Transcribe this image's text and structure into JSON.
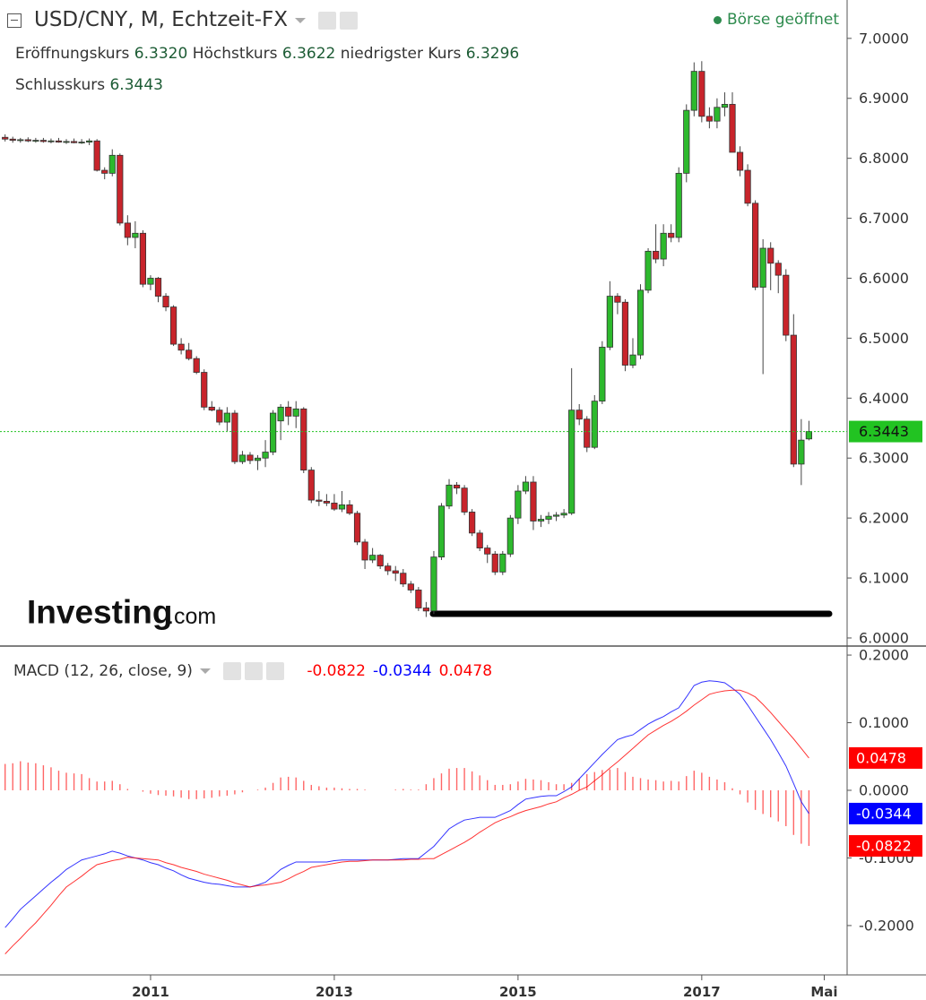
{
  "chart_data": [
    {
      "type": "candlestick",
      "title": "USD/CNY, M, Echtzeit-FX",
      "status": "Börse geöffnet",
      "ohlc_names": [
        "Eröffnungskurs",
        "Höchstkurs",
        "niedrigster Kurs",
        "Schlusskurs"
      ],
      "ohlc_value_labels": [
        "6.3320",
        "6.3622",
        "6.3296",
        "6.3443"
      ],
      "watermark": [
        "Investing",
        ".com"
      ],
      "up_color": "#2db92d",
      "down_color": "#c8242b",
      "last_color": "#22c322",
      "ylim": [
        5.988,
        7.064
      ],
      "yticks": [
        {
          "value": 6,
          "label": "6.0000"
        },
        {
          "value": 6.1,
          "label": "6.1000"
        },
        {
          "value": 6.2,
          "label": "6.2000"
        },
        {
          "value": 6.3,
          "label": "6.3000"
        },
        {
          "value": 6.4,
          "label": "6.4000"
        },
        {
          "value": 6.5,
          "label": "6.5000"
        },
        {
          "value": 6.6,
          "label": "6.6000"
        },
        {
          "value": 6.7,
          "label": "6.7000"
        },
        {
          "value": 6.8,
          "label": "6.8000"
        },
        {
          "value": 6.9,
          "label": "6.9000"
        },
        {
          "value": 7,
          "label": "7.0000"
        }
      ],
      "grid": false,
      "categories": [
        null,
        null,
        null,
        null,
        null,
        null,
        null,
        null,
        null,
        null,
        null,
        null,
        null,
        null,
        null,
        null,
        null,
        null,
        null,
        "2011",
        null,
        null,
        null,
        null,
        null,
        null,
        null,
        null,
        null,
        null,
        null,
        null,
        null,
        null,
        null,
        null,
        null,
        null,
        null,
        null,
        null,
        null,
        null,
        "2013",
        null,
        null,
        null,
        null,
        null,
        null,
        null,
        null,
        null,
        null,
        null,
        null,
        null,
        null,
        null,
        null,
        null,
        null,
        null,
        null,
        null,
        null,
        null,
        "2015",
        null,
        null,
        null,
        null,
        null,
        null,
        null,
        null,
        null,
        null,
        null,
        null,
        null,
        null,
        null,
        null,
        null,
        null,
        null,
        null,
        null,
        null,
        null,
        "2017",
        null,
        null,
        null,
        null,
        null,
        null,
        null,
        null,
        null,
        null,
        null,
        null,
        null,
        null,
        null,
        "Mai"
      ],
      "open": [
        6.835,
        6.832,
        6.83,
        6.831,
        6.829,
        6.83,
        6.828,
        6.829,
        6.827,
        6.828,
        6.826,
        6.827,
        6.829,
        6.78,
        6.775,
        6.805,
        6.692,
        6.668,
        6.675,
        6.59,
        6.6,
        6.57,
        6.552,
        6.49,
        6.48,
        6.466,
        6.443,
        6.385,
        6.38,
        6.36,
        6.375,
        6.294,
        6.305,
        6.296,
        6.3,
        6.31,
        6.362,
        6.385,
        6.37,
        6.382,
        6.28,
        6.23,
        6.228,
        6.225,
        6.215,
        6.222,
        6.208,
        6.16,
        6.13,
        6.138,
        6.12,
        6.112,
        6.108,
        6.09,
        6.08,
        6.05,
        6.045,
        6.135,
        6.22,
        6.255,
        6.25,
        6.21,
        6.175,
        6.15,
        6.14,
        6.11,
        6.14,
        6.2,
        6.245,
        6.26,
        6.195,
        6.198,
        6.203,
        6.205,
        6.208,
        6.38,
        6.365,
        6.318,
        6.395,
        6.485,
        6.57,
        6.56,
        6.455,
        6.472,
        6.58,
        6.645,
        6.632,
        6.675,
        6.668,
        6.775,
        6.88,
        6.945,
        6.87,
        6.862,
        6.885,
        6.89,
        6.81,
        6.78,
        6.725,
        6.585,
        6.65,
        6.625,
        6.605,
        6.505,
        6.29,
        6.332,
        null,
        null
      ],
      "high": [
        6.84,
        6.836,
        6.834,
        6.835,
        6.834,
        6.834,
        6.833,
        6.834,
        6.832,
        6.833,
        6.832,
        6.833,
        6.832,
        6.785,
        6.815,
        6.808,
        6.705,
        6.695,
        6.68,
        6.605,
        6.602,
        6.575,
        6.555,
        6.5,
        6.492,
        6.47,
        6.448,
        6.395,
        6.385,
        6.385,
        6.38,
        6.312,
        6.31,
        6.305,
        6.33,
        6.38,
        6.39,
        6.395,
        6.395,
        6.385,
        6.285,
        6.245,
        6.24,
        6.24,
        6.245,
        6.23,
        6.212,
        6.165,
        6.15,
        6.14,
        6.125,
        6.12,
        6.115,
        6.095,
        6.085,
        6.06,
        6.145,
        6.225,
        6.265,
        6.26,
        6.255,
        6.215,
        6.18,
        6.155,
        6.145,
        6.145,
        6.205,
        6.255,
        6.27,
        6.27,
        6.205,
        6.21,
        6.21,
        6.215,
        6.45,
        6.39,
        6.37,
        6.405,
        6.495,
        6.595,
        6.575,
        6.565,
        6.5,
        6.59,
        6.65,
        6.69,
        6.69,
        6.69,
        6.785,
        6.89,
        6.96,
        6.962,
        6.885,
        6.9,
        6.91,
        6.91,
        6.82,
        6.79,
        6.73,
        6.665,
        6.66,
        6.63,
        6.615,
        6.54,
        6.365,
        6.3622,
        null,
        null
      ],
      "low": [
        6.828,
        6.826,
        6.826,
        6.827,
        6.826,
        6.826,
        6.825,
        6.826,
        6.824,
        6.825,
        6.824,
        6.822,
        6.778,
        6.765,
        6.77,
        6.688,
        6.655,
        6.65,
        6.585,
        6.58,
        6.56,
        6.545,
        6.487,
        6.473,
        6.463,
        6.44,
        6.38,
        6.378,
        6.355,
        6.345,
        6.29,
        6.29,
        6.29,
        6.28,
        6.285,
        6.305,
        6.33,
        6.355,
        6.35,
        6.275,
        6.225,
        6.22,
        6.22,
        6.212,
        6.21,
        6.205,
        6.155,
        6.115,
        6.125,
        6.115,
        6.105,
        6.095,
        6.085,
        6.075,
        6.045,
        6.035,
        6.04,
        6.13,
        6.215,
        6.24,
        6.205,
        6.17,
        6.145,
        6.125,
        6.105,
        6.105,
        6.135,
        6.19,
        6.24,
        6.18,
        6.185,
        6.19,
        6.195,
        6.2,
        6.205,
        6.355,
        6.31,
        6.315,
        6.39,
        6.48,
        6.54,
        6.445,
        6.45,
        6.465,
        6.575,
        6.625,
        6.62,
        6.66,
        6.66,
        6.76,
        6.87,
        6.86,
        6.85,
        6.85,
        6.87,
        6.81,
        6.77,
        6.72,
        6.58,
        6.44,
        6.58,
        6.575,
        6.495,
        6.285,
        6.255,
        6.3296,
        null,
        null
      ],
      "close": [
        6.832,
        6.83,
        6.831,
        6.829,
        6.83,
        6.828,
        6.829,
        6.827,
        6.828,
        6.826,
        6.827,
        6.829,
        6.78,
        6.775,
        6.805,
        6.692,
        6.668,
        6.675,
        6.59,
        6.6,
        6.57,
        6.552,
        6.49,
        6.48,
        6.466,
        6.443,
        6.385,
        6.38,
        6.36,
        6.375,
        6.294,
        6.305,
        6.296,
        6.3,
        6.31,
        6.375,
        6.385,
        6.37,
        6.382,
        6.28,
        6.23,
        6.228,
        6.225,
        6.215,
        6.222,
        6.208,
        6.16,
        6.13,
        6.138,
        6.12,
        6.112,
        6.108,
        6.09,
        6.08,
        6.05,
        6.045,
        6.135,
        6.22,
        6.255,
        6.25,
        6.21,
        6.175,
        6.15,
        6.14,
        6.11,
        6.14,
        6.2,
        6.245,
        6.26,
        6.195,
        6.198,
        6.203,
        6.205,
        6.208,
        6.38,
        6.365,
        6.318,
        6.395,
        6.485,
        6.57,
        6.56,
        6.455,
        6.472,
        6.58,
        6.645,
        6.632,
        6.675,
        6.668,
        6.775,
        6.88,
        6.945,
        6.87,
        6.862,
        6.885,
        6.89,
        6.81,
        6.78,
        6.725,
        6.585,
        6.65,
        6.625,
        6.605,
        6.505,
        6.29,
        6.33,
        6.3443,
        null,
        null
      ]
    },
    {
      "type": "line",
      "title": "MACD (12, 26, close, 9)",
      "ylim": [
        -0.273,
        0.212
      ],
      "yticks": [
        {
          "value": -0.2,
          "label": "-0.2000"
        },
        {
          "value": -0.1,
          "label": "-0.1000"
        },
        {
          "value": 0,
          "label": "0.0000"
        },
        {
          "value": 0.1,
          "label": "0.1000"
        },
        {
          "value": 0.2,
          "label": "0.2000"
        }
      ],
      "grid": false,
      "series": [
        {
          "style": "histogram",
          "color": "#ff0000",
          "values": [
            0.039,
            0.04,
            0.043,
            0.041,
            0.04,
            0.037,
            0.034,
            0.029,
            0.026,
            0.025,
            0.024,
            0.018,
            0.013,
            0.013,
            0.014,
            0.009,
            0.002,
            0.0,
            -0.002,
            -0.005,
            -0.007,
            -0.008,
            -0.009,
            -0.011,
            -0.013,
            -0.013,
            -0.012,
            -0.011,
            -0.009,
            -0.008,
            -0.006,
            -0.003,
            0.0,
            0.001,
            0.004,
            0.011,
            0.019,
            0.02,
            0.019,
            0.014,
            0.008,
            0.006,
            0.004,
            0.004,
            0.003,
            0.002,
            0.002,
            0.001,
            0.0,
            0.0,
            0.0,
            0.001,
            0.002,
            0.001,
            0.001,
            0.009,
            0.018,
            0.025,
            0.032,
            0.033,
            0.033,
            0.028,
            0.022,
            0.015,
            0.008,
            0.008,
            0.009,
            0.013,
            0.017,
            0.016,
            0.015,
            0.012,
            0.009,
            0.009,
            0.011,
            0.017,
            0.024,
            0.027,
            0.03,
            0.031,
            0.033,
            0.027,
            0.02,
            0.018,
            0.016,
            0.015,
            0.013,
            0.014,
            0.013,
            0.021,
            0.029,
            0.026,
            0.02,
            0.016,
            0.012,
            0.003,
            -0.006,
            -0.018,
            -0.029,
            -0.035,
            -0.04,
            -0.046,
            -0.053,
            -0.066,
            -0.079,
            -0.0822,
            null,
            null
          ]
        },
        {
          "style": "line",
          "color": "#0000ff",
          "values": [
            -0.203,
            -0.19,
            -0.176,
            -0.166,
            -0.156,
            -0.146,
            -0.136,
            -0.127,
            -0.117,
            -0.11,
            -0.103,
            -0.1,
            -0.097,
            -0.094,
            -0.09,
            -0.093,
            -0.097,
            -0.1,
            -0.103,
            -0.107,
            -0.11,
            -0.115,
            -0.119,
            -0.125,
            -0.13,
            -0.133,
            -0.136,
            -0.138,
            -0.139,
            -0.141,
            -0.143,
            -0.143,
            -0.143,
            -0.14,
            -0.136,
            -0.127,
            -0.117,
            -0.111,
            -0.106,
            -0.106,
            -0.106,
            -0.106,
            -0.106,
            -0.104,
            -0.103,
            -0.103,
            -0.103,
            -0.103,
            -0.103,
            -0.103,
            -0.103,
            -0.102,
            -0.101,
            -0.101,
            -0.101,
            -0.092,
            -0.083,
            -0.07,
            -0.057,
            -0.05,
            -0.044,
            -0.042,
            -0.04,
            -0.04,
            -0.04,
            -0.035,
            -0.03,
            -0.021,
            -0.013,
            -0.011,
            -0.009,
            -0.008,
            -0.008,
            -0.002,
            0.005,
            0.017,
            0.029,
            0.041,
            0.053,
            0.064,
            0.075,
            0.079,
            0.082,
            0.09,
            0.098,
            0.104,
            0.109,
            0.116,
            0.122,
            0.138,
            0.155,
            0.16,
            0.162,
            0.161,
            0.159,
            0.151,
            0.142,
            0.126,
            0.109,
            0.092,
            0.075,
            0.056,
            0.036,
            0.01,
            -0.017,
            -0.0344,
            null,
            null
          ]
        },
        {
          "style": "line",
          "color": "#ff0000",
          "values": [
            -0.242,
            -0.23,
            -0.219,
            -0.207,
            -0.196,
            -0.183,
            -0.17,
            -0.156,
            -0.143,
            -0.135,
            -0.127,
            -0.118,
            -0.11,
            -0.107,
            -0.104,
            -0.102,
            -0.099,
            -0.1,
            -0.101,
            -0.102,
            -0.103,
            -0.107,
            -0.11,
            -0.114,
            -0.117,
            -0.12,
            -0.124,
            -0.127,
            -0.13,
            -0.133,
            -0.137,
            -0.14,
            -0.143,
            -0.141,
            -0.14,
            -0.138,
            -0.136,
            -0.131,
            -0.125,
            -0.12,
            -0.114,
            -0.112,
            -0.11,
            -0.108,
            -0.106,
            -0.105,
            -0.105,
            -0.104,
            -0.103,
            -0.103,
            -0.103,
            -0.103,
            -0.103,
            -0.102,
            -0.102,
            -0.101,
            -0.101,
            -0.095,
            -0.089,
            -0.083,
            -0.077,
            -0.07,
            -0.062,
            -0.055,
            -0.048,
            -0.043,
            -0.039,
            -0.034,
            -0.03,
            -0.027,
            -0.024,
            -0.02,
            -0.017,
            -0.011,
            -0.006,
            0.0,
            0.005,
            0.014,
            0.023,
            0.033,
            0.042,
            0.052,
            0.062,
            0.072,
            0.082,
            0.089,
            0.096,
            0.102,
            0.109,
            0.117,
            0.126,
            0.134,
            0.142,
            0.145,
            0.147,
            0.148,
            0.148,
            0.144,
            0.138,
            0.127,
            0.115,
            0.102,
            0.089,
            0.076,
            0.062,
            0.0478,
            null,
            null
          ]
        }
      ]
    }
  ]
}
